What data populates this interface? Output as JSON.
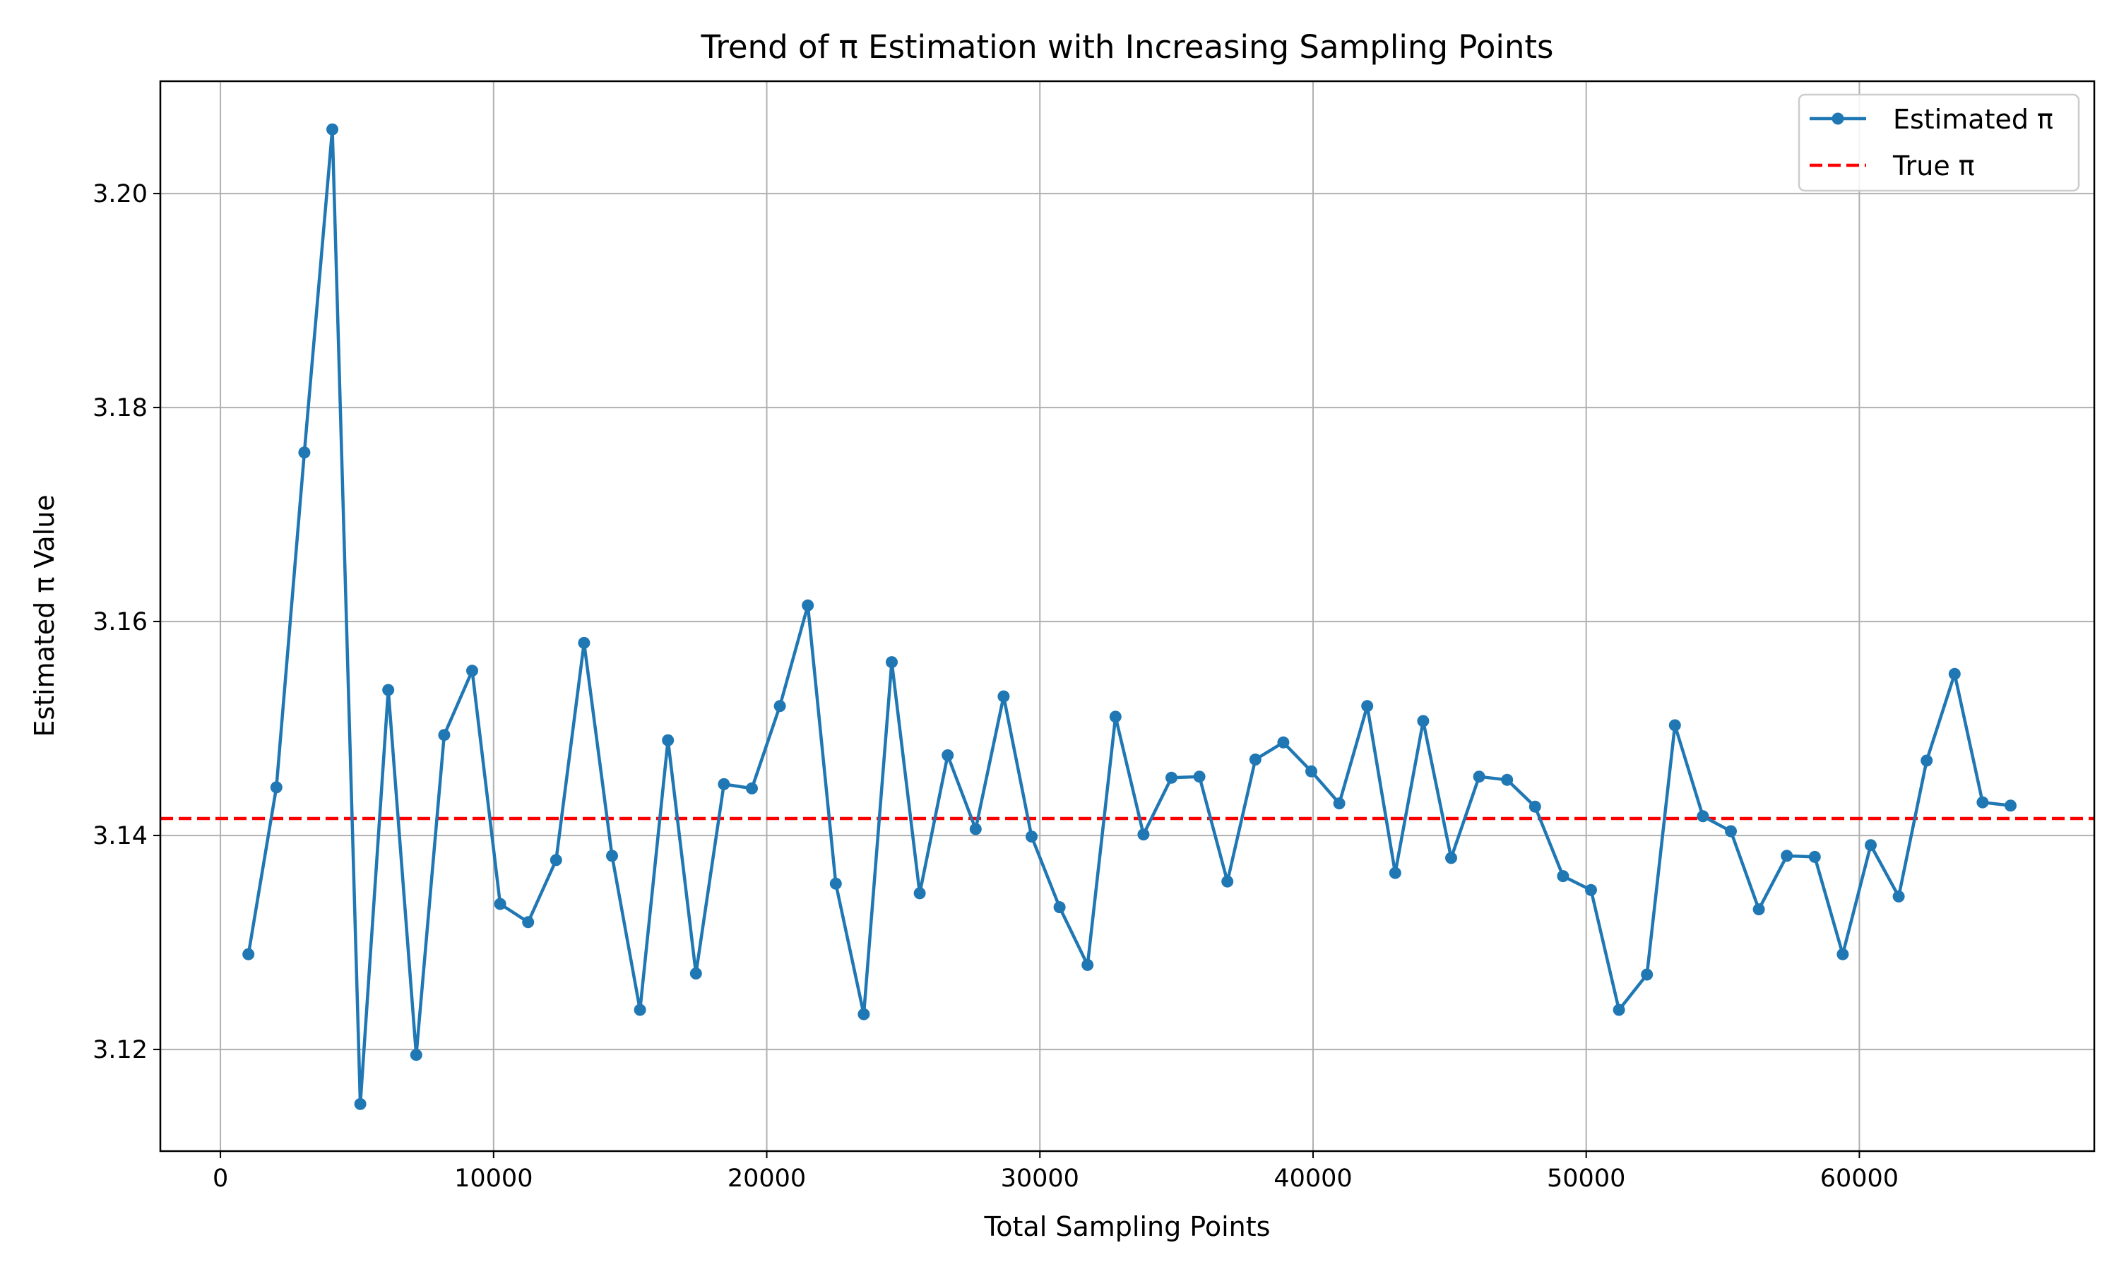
{
  "chart_data": {
    "type": "line",
    "title": "Trend of π Estimation with Increasing Sampling Points",
    "xlabel": "Total Sampling Points",
    "ylabel": "Estimated π Value",
    "xlim": [
      -2200,
      68600
    ],
    "ylim": [
      3.1105,
      3.2105
    ],
    "xticks": [
      0,
      10000,
      20000,
      30000,
      40000,
      50000,
      60000
    ],
    "xtick_labels": [
      "0",
      "10000",
      "20000",
      "30000",
      "40000",
      "50000",
      "60000"
    ],
    "yticks": [
      3.12,
      3.14,
      3.16,
      3.18,
      3.2
    ],
    "ytick_labels": [
      "3.12",
      "3.14",
      "3.16",
      "3.18",
      "3.20"
    ],
    "grid": true,
    "legend_position": "top-right",
    "series": [
      {
        "name": "Estimated π",
        "color": "#1f77b4",
        "marker": "circle",
        "x": [
          1024,
          2048,
          3072,
          4096,
          5120,
          6144,
          7168,
          8192,
          9216,
          10240,
          11264,
          12288,
          13312,
          14336,
          15360,
          16384,
          17408,
          18432,
          19456,
          20480,
          21504,
          22528,
          23552,
          24576,
          25600,
          26624,
          27648,
          28672,
          29696,
          30720,
          31744,
          32768,
          33792,
          34816,
          35840,
          36864,
          37888,
          38912,
          39936,
          40960,
          41984,
          43008,
          44032,
          45056,
          46080,
          47104,
          48128,
          49152,
          50176,
          51200,
          52224,
          53248,
          54272,
          55296,
          56320,
          57344,
          58368,
          59392,
          60416,
          61440,
          62464,
          63488,
          64512,
          65536
        ],
        "y": [
          3.1289,
          3.1445,
          3.1758,
          3.206,
          3.1149,
          3.1536,
          3.1195,
          3.1494,
          3.1554,
          3.1336,
          3.1319,
          3.1377,
          3.158,
          3.1381,
          3.1237,
          3.1489,
          3.1271,
          3.1448,
          3.1444,
          3.1521,
          3.1615,
          3.1355,
          3.1233,
          3.1562,
          3.1346,
          3.1475,
          3.1406,
          3.153,
          3.1399,
          3.1333,
          3.1279,
          3.1511,
          3.1401,
          3.1454,
          3.1455,
          3.1357,
          3.1471,
          3.1487,
          3.146,
          3.143,
          3.1521,
          3.1365,
          3.1507,
          3.1379,
          3.1455,
          3.1452,
          3.1427,
          3.1362,
          3.1349,
          3.1237,
          3.127,
          3.1503,
          3.1418,
          3.1404,
          3.1331,
          3.1381,
          3.138,
          3.1289,
          3.1391,
          3.1343,
          3.147,
          3.1551,
          3.1431,
          3.1428
        ]
      },
      {
        "name": "True π",
        "color": "#ff0000",
        "line_style": "dashed",
        "y_constant": 3.14159
      }
    ]
  }
}
